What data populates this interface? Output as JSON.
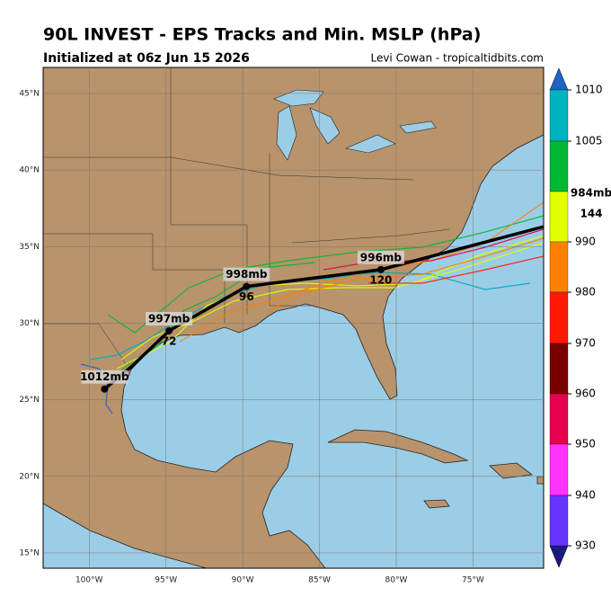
{
  "header": {
    "title": "90L INVEST - EPS Tracks and Min. MSLP (hPa)",
    "subtitle": "Initialized at 06z Jun 15 2026",
    "credit": "Levi Cowan - tropicaltidbits.com"
  },
  "map": {
    "lat_labels": [
      {
        "value": 45,
        "label": "45°N"
      },
      {
        "value": 40,
        "label": "40°N"
      },
      {
        "value": 35,
        "label": "35°N"
      },
      {
        "value": 30,
        "label": "30°N"
      },
      {
        "value": 25,
        "label": "25°N"
      },
      {
        "value": 20,
        "label": "20°N"
      },
      {
        "value": 15,
        "label": "15°N"
      }
    ],
    "lon_labels": [
      {
        "value": -100,
        "label": "100°W"
      },
      {
        "value": -95,
        "label": "95°W"
      },
      {
        "value": -90,
        "label": "90°W"
      },
      {
        "value": -85,
        "label": "85°W"
      },
      {
        "value": -80,
        "label": "80°W"
      },
      {
        "value": -75,
        "label": "75°W"
      }
    ],
    "lon_range": [
      -103,
      -70.4
    ],
    "lat_range": [
      14,
      46.7
    ],
    "mean_track": {
      "lon": [
        -99.0,
        -97.2,
        -94.8,
        -89.75,
        -81.0,
        -70.4
      ],
      "lat": [
        25.7,
        27.2,
        29.5,
        32.4,
        33.5,
        36.3
      ]
    },
    "track_labels": [
      {
        "lon": -99.0,
        "lat": 25.7,
        "pressure": "1012mb"
      },
      {
        "lon": -94.8,
        "lat": 29.5,
        "pressure": "997mb",
        "hour": "72"
      },
      {
        "lon": -89.75,
        "lat": 32.4,
        "pressure": "998mb",
        "hour": "96"
      },
      {
        "lon": -81.0,
        "lat": 33.5,
        "pressure": "996mb",
        "hour": "120"
      }
    ],
    "offmap_label": {
      "pressure": "984mb",
      "hour": "144"
    }
  },
  "colorbar": {
    "ticks": [
      1010,
      1005,
      990,
      980,
      970,
      960,
      950,
      940,
      930
    ],
    "colors": [
      "#00b3c0",
      "#00b833",
      "#e1ff00",
      "#ff8000",
      "#ff1a00",
      "#7a0000",
      "#e6004d",
      "#ff33ff",
      "#6633ff"
    ]
  }
}
